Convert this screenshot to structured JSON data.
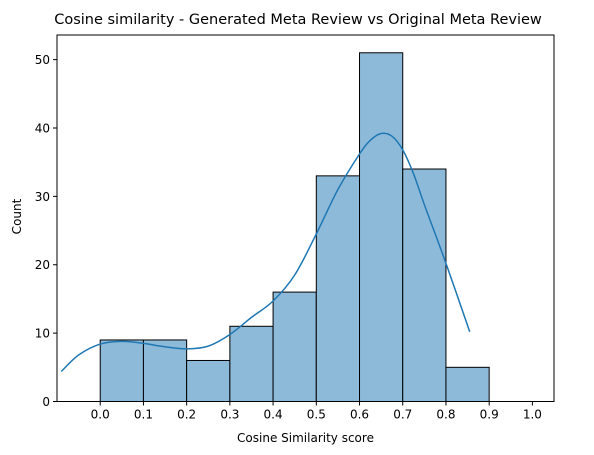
{
  "chart_data": {
    "type": "bar",
    "title": "Cosine similarity - Generated Meta Review vs Original Meta Review",
    "xlabel": "Cosine Similarity score",
    "ylabel": "Count",
    "xlim": [
      -0.1,
      1.05
    ],
    "ylim": [
      0,
      53.6
    ],
    "x_ticks": [
      "0.0",
      "0.1",
      "0.2",
      "0.3",
      "0.4",
      "0.5",
      "0.6",
      "0.7",
      "0.8",
      "0.9",
      "1.0"
    ],
    "y_ticks": [
      "0",
      "10",
      "20",
      "30",
      "40",
      "50"
    ],
    "bins": [
      {
        "start": 0.0,
        "end": 0.1,
        "count": 9
      },
      {
        "start": 0.1,
        "end": 0.2,
        "count": 9
      },
      {
        "start": 0.2,
        "end": 0.3,
        "count": 6
      },
      {
        "start": 0.3,
        "end": 0.4,
        "count": 11
      },
      {
        "start": 0.4,
        "end": 0.5,
        "count": 16
      },
      {
        "start": 0.5,
        "end": 0.6,
        "count": 33
      },
      {
        "start": 0.6,
        "end": 0.7,
        "count": 51
      },
      {
        "start": 0.7,
        "end": 0.8,
        "count": 34
      },
      {
        "start": 0.8,
        "end": 0.9,
        "count": 5
      }
    ],
    "kde": {
      "x": [
        -0.09,
        -0.05,
        0.0,
        0.05,
        0.1,
        0.15,
        0.2,
        0.25,
        0.3,
        0.35,
        0.4,
        0.45,
        0.5,
        0.55,
        0.6,
        0.625,
        0.65,
        0.675,
        0.7,
        0.725,
        0.75,
        0.8,
        0.855
      ],
      "y": [
        4.4,
        6.8,
        8.4,
        8.8,
        8.5,
        8.0,
        7.7,
        8.1,
        9.8,
        12.3,
        14.7,
        18.5,
        24.5,
        31.0,
        36.2,
        38.2,
        39.2,
        38.8,
        36.8,
        33.3,
        28.8,
        20.2,
        10.2
      ]
    },
    "colors": {
      "bar_fill": "#8ebad9",
      "bar_edge": "#000000",
      "kde_line": "#1f77b4"
    },
    "grid": false,
    "legend": "none"
  }
}
